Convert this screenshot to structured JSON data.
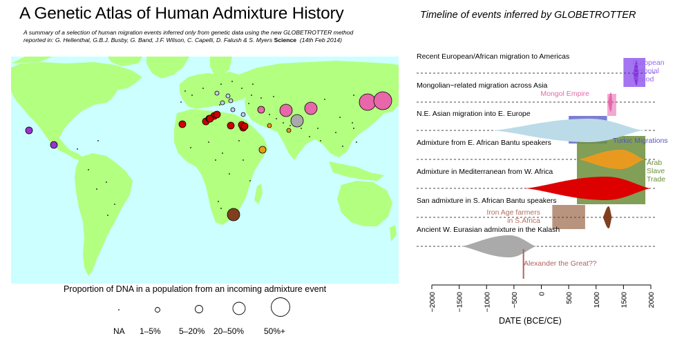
{
  "title": "A Genetic Atlas of Human Admixture History",
  "summary": {
    "line1": "A summary of a selection of human migration events inferred only from genetic data using the new GLOBETROTTER method",
    "line2": "reported in: G. Hellenthal, G.B.J. Busby, G. Band, J.F. Wilson, C. Capelli, D. Falush & S. Myers",
    "journal": "Science",
    "date": "(14th Feb 2014)"
  },
  "map": {
    "ocean_color": "#ccffff",
    "land_color": "#b3ff80",
    "admixture_events": [
      {
        "color": "#9933cc",
        "size": "5-20%"
      },
      {
        "color": "#9933cc",
        "size": "5-20%"
      },
      {
        "color": "#cc0000",
        "size": "5-20%"
      },
      {
        "color": "#cc0000",
        "size": "5-20%"
      },
      {
        "color": "#cc0000",
        "size": "5-20%"
      },
      {
        "color": "#cc0000",
        "size": "5-20%"
      },
      {
        "color": "#cc0000",
        "size": "5-20%"
      },
      {
        "color": "#cc0000",
        "size": "5-20%"
      },
      {
        "color": "#cc0000",
        "size": "5-20%"
      },
      {
        "color": "#cc0000",
        "size": "5-20%"
      },
      {
        "color": "#cc0000",
        "size": "5-20%"
      },
      {
        "color": "#cc0000",
        "size": "5-20%"
      },
      {
        "color": "#e866aa",
        "size": "5-20%"
      },
      {
        "color": "#e866aa",
        "size": "20-50%"
      },
      {
        "color": "#e866aa",
        "size": "20-50%"
      },
      {
        "color": "#e866aa",
        "size": "50%+"
      },
      {
        "color": "#e866aa",
        "size": "5-20%"
      },
      {
        "color": "#aaaaaa",
        "size": "20-50%"
      },
      {
        "color": "#e89a20",
        "size": "1-5%"
      },
      {
        "color": "#e89a20",
        "size": "1-5%"
      },
      {
        "color": "#e89a20",
        "size": "5-20%"
      },
      {
        "color": "#c8c8ee",
        "size": "1-5%"
      },
      {
        "color": "#c8c8ee",
        "size": "1-5%"
      },
      {
        "color": "#c8c8ee",
        "size": "1-5%"
      },
      {
        "color": "#c8c8ee",
        "size": "1-5%"
      },
      {
        "color": "#c8c8ee",
        "size": "1-5%"
      },
      {
        "color": "#c8c8ee",
        "size": "1-5%"
      },
      {
        "color": "#804020",
        "size": "20-50%"
      }
    ]
  },
  "legend": {
    "title": "Proportion of DNA in a population from an incoming admixture event",
    "categories": [
      "NA",
      "1–5%",
      "5–20%",
      "20–50%",
      "50%+"
    ]
  },
  "timeline": {
    "title": "Timeline of events inferred by GLOBETROTTER",
    "xlabel": "DATE (BCE/CE)",
    "xlim": [
      -2000,
      2000
    ],
    "ticks": [
      -2000,
      -1500,
      -1000,
      -500,
      0,
      500,
      1000,
      1500,
      2000
    ],
    "ticklabels": [
      "−2000",
      "−1500",
      "−1000",
      "−500",
      "0",
      "500",
      "1000",
      "1500",
      "2000"
    ],
    "rows": [
      {
        "label": "Recent European/African migration to Americas",
        "color": "#8833dd",
        "center": 1740,
        "spread": 65,
        "maxw": 18
      },
      {
        "label": "Mongolian−related migration across Asia",
        "color": "#e866aa",
        "center": 1270,
        "spread": 55,
        "maxw": 14
      },
      {
        "label": "N.E. Asian migration into E. Europe",
        "color": "#bcdbe8",
        "center": 880,
        "spread": 1800,
        "maxw": 17
      },
      {
        "label": "Admixture from E. African Bantu speakers",
        "color": "#e89a20",
        "center": 1450,
        "spread": 800,
        "maxw": 14
      },
      {
        "label": "Admixture in Mediterranean from W. Africa",
        "color": "#dd0000",
        "center": 1180,
        "spread": 1500,
        "maxw": 17
      },
      {
        "label": "San admixture in S. African Bantu speakers",
        "color": "#804020",
        "center": 1230,
        "spread": 110,
        "maxw": 16
      },
      {
        "label": "Ancient W. Eurasian admixture in the Kalash",
        "color": "#aaaaaa",
        "center": -580,
        "spread": 900,
        "maxw": 16
      }
    ],
    "historical_periods": [
      {
        "label": "European\nColonial\nPeriod",
        "color": "#9966ee",
        "start": 1500,
        "end": 1900,
        "label_color": "#9966ee"
      },
      {
        "label": "Mongol Empire",
        "color": "#f0a0cc",
        "start": 1206,
        "end": 1368,
        "label_color": "#e866aa"
      },
      {
        "label": "Turkic Migrations",
        "color": "#6666cc",
        "start": 500,
        "end": 1200,
        "label_color": "#5555bb"
      },
      {
        "label": "Arab\nSlave\nTrade",
        "color": "#6b8e3a",
        "start": 650,
        "end": 1900,
        "label_color": "#6b8e3a"
      },
      {
        "label": "Iron Age farmers\nin S.Africa",
        "color": "#b08870",
        "start": 200,
        "end": 800,
        "label_color": "#b07060"
      },
      {
        "label": "Alexander the Great??",
        "color": "#b06060",
        "year": -326,
        "label_color": "#b06060"
      }
    ]
  }
}
